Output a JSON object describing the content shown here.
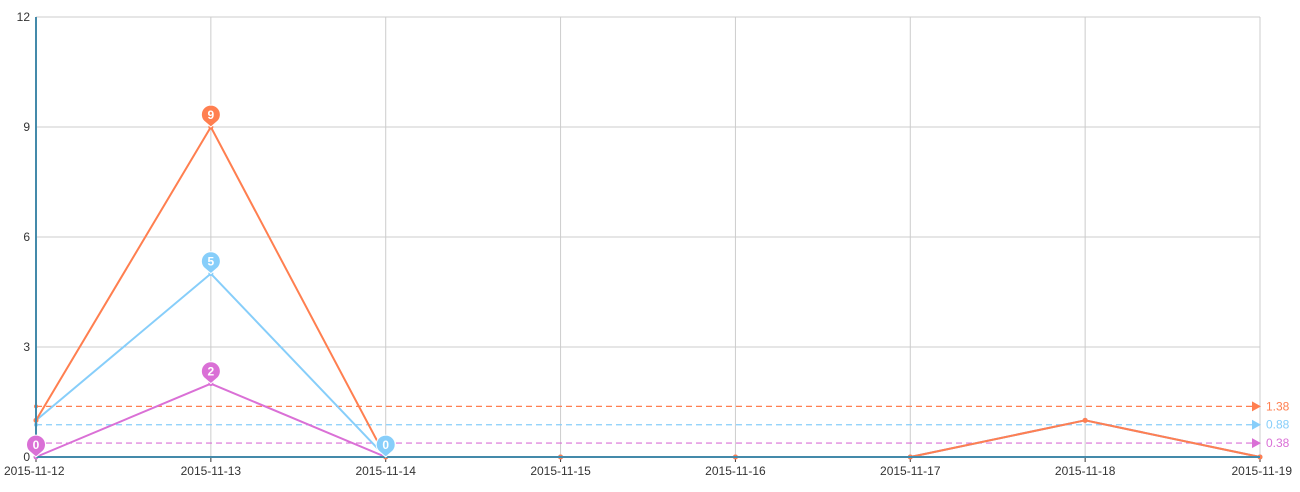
{
  "chart_data": {
    "type": "line",
    "title": "",
    "xlabel": "",
    "ylabel": "",
    "categories": [
      "2015-11-12",
      "2015-11-13",
      "2015-11-14",
      "2015-11-15",
      "2015-11-16",
      "2015-11-17",
      "2015-11-18",
      "2015-11-19"
    ],
    "ylim": [
      0,
      12
    ],
    "yticks": [
      "0",
      "3",
      "6",
      "9",
      "12"
    ],
    "grid": true,
    "legend": "none",
    "series": [
      {
        "color": "#ff7f50",
        "values": [
          1,
          9,
          0,
          0,
          0,
          0,
          1,
          0
        ],
        "max_pin": {
          "index": 1,
          "label": "9"
        },
        "min_pin": null,
        "average": {
          "value": 1.38,
          "label": "1.38"
        }
      },
      {
        "color": "#87cefa",
        "values": [
          1,
          5,
          0,
          0,
          0,
          0,
          1,
          0
        ],
        "max_pin": {
          "index": 1,
          "label": "5"
        },
        "min_pin": {
          "index": 2,
          "label": "0"
        },
        "average": {
          "value": 0.88,
          "label": "0.88"
        }
      },
      {
        "color": "#da70d6",
        "values": [
          0,
          2,
          0,
          0,
          0,
          0,
          1,
          0
        ],
        "max_pin": {
          "index": 1,
          "label": "2"
        },
        "min_pin": {
          "index": 0,
          "label": "0"
        },
        "average": {
          "value": 0.38,
          "label": "0.38"
        }
      }
    ]
  }
}
